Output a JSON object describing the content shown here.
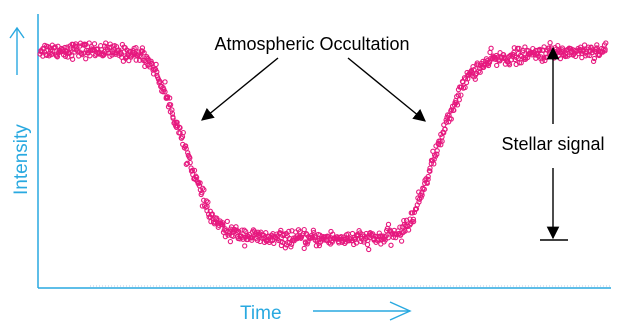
{
  "colors": {
    "axis": "#29a9e0",
    "data": "#e6197f",
    "annotation": "#000000"
  },
  "chart_data": {
    "type": "scatter",
    "title": "",
    "xlabel": "Time",
    "ylabel": "Intensity",
    "xlim": [
      0,
      100
    ],
    "ylim": [
      0,
      100
    ],
    "grid": false,
    "legend": "none",
    "series": [
      {
        "color": "#e6197f",
        "marker": "open-circle",
        "profile": {
          "x": [
            0,
            10,
            18,
            20,
            22,
            24,
            26,
            28,
            30,
            33,
            40,
            50,
            60,
            64,
            66,
            68,
            70,
            72,
            74,
            76,
            80,
            90,
            100
          ],
          "y": [
            93,
            93,
            91,
            86,
            75,
            62,
            48,
            34,
            21,
            14,
            11,
            11,
            11,
            14,
            21,
            35,
            49,
            62,
            74,
            83,
            89,
            92,
            93
          ]
        },
        "noise": 3
      }
    ],
    "annotations": [
      {
        "text": "Atmospheric Occultation"
      },
      {
        "text": "Stellar signal"
      }
    ]
  }
}
